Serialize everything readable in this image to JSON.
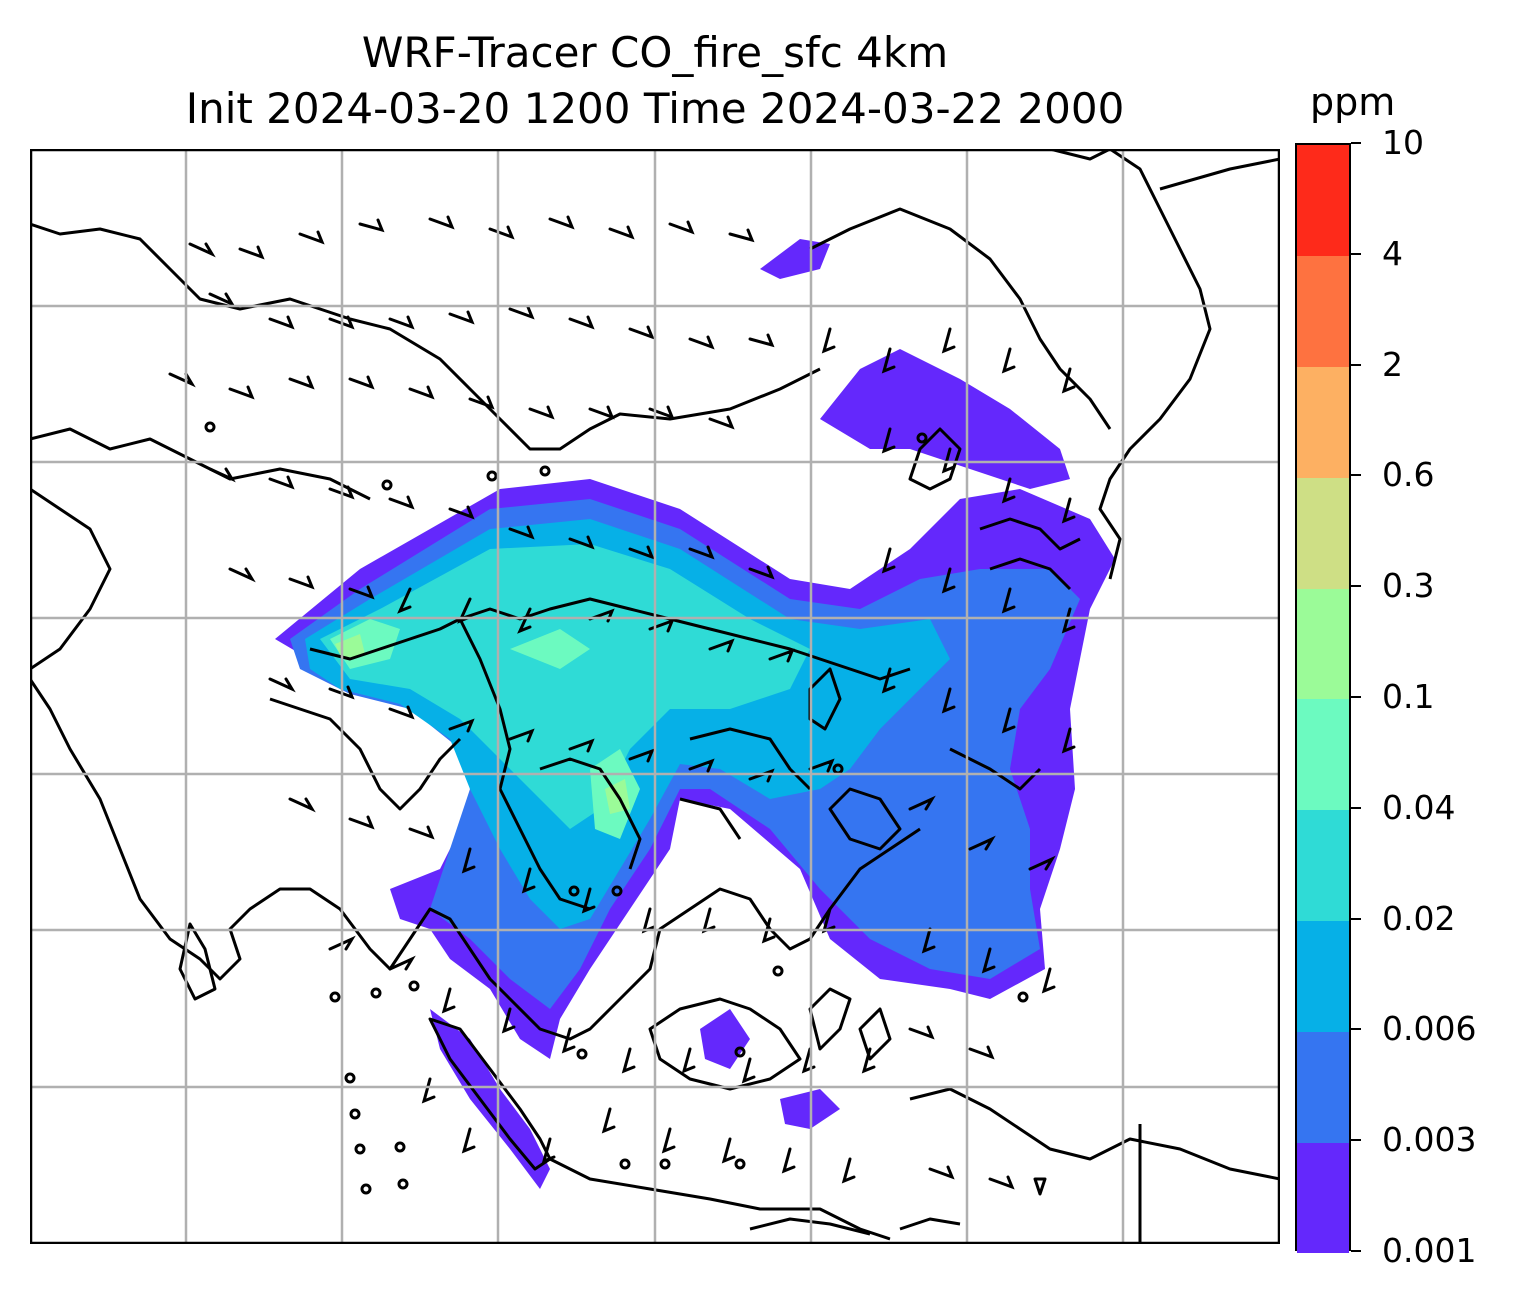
{
  "title": {
    "line1": "WRF-Tracer CO_fire_sfc 4km",
    "line2": "Init 2024-03-20 1200 Time 2024-03-22 2000"
  },
  "colorbar": {
    "unit": "ppm",
    "levels": [
      "0.001",
      "0.003",
      "0.006",
      "0.02",
      "0.04",
      "0.1",
      "0.3",
      "0.6",
      "2",
      "4",
      "10"
    ],
    "colors": [
      "#6428fc",
      "#3575f1",
      "#06b0e7",
      "#2fdbd6",
      "#6cfac0",
      "#9bfb98",
      "#cedf85",
      "#fdb062",
      "#fe7240",
      "#fe2a1a"
    ]
  },
  "map": {
    "gridlines": true,
    "wind_barbs": true,
    "coastlines": true
  }
}
